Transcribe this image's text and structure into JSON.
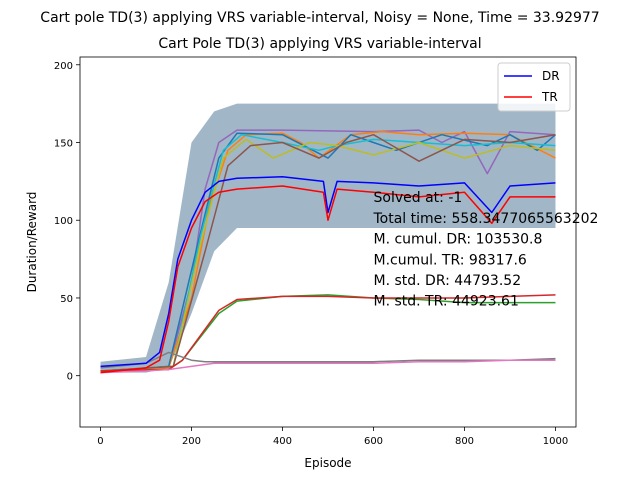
{
  "chart_data": {
    "type": "line",
    "suptitle": "Cart pole TD(3) applying VRS variable-interval, Noisy = None, Time = 33.92977",
    "title": "Cart Pole TD(3) applying VRS variable-interval",
    "xlabel": "Episode",
    "ylabel": "Duration/Reward",
    "xlim": [
      -45,
      1045
    ],
    "ylim": [
      -33,
      205
    ],
    "xticks": [
      0,
      200,
      400,
      600,
      800,
      1000
    ],
    "yticks": [
      0,
      50,
      100,
      150,
      200
    ],
    "legend": {
      "placement": "top-right",
      "entries": [
        {
          "label": "DR",
          "color": "#0000ff"
        },
        {
          "label": "TR",
          "color": "#ff0000"
        }
      ]
    },
    "annotation": {
      "x": 600,
      "y": 45,
      "lines": [
        "Solved at: -1",
        "Total time: 558.3477065563202",
        "M. cumul. DR: 103530.8",
        "M.cumul. TR: 98317.6",
        "M. std. DR: 44793.52",
        "M. std. TR: 44923.61"
      ]
    },
    "band": {
      "color": "#6f91aa",
      "x": [
        0,
        100,
        150,
        200,
        250,
        300,
        1000
      ],
      "lower": [
        2,
        2,
        5,
        40,
        80,
        95,
        95
      ],
      "upper": [
        9,
        12,
        60,
        150,
        170,
        175,
        175
      ]
    },
    "series": [
      {
        "name": "DR",
        "color": "#0000ff",
        "width": 1.5,
        "x": [
          0,
          100,
          130,
          150,
          170,
          200,
          230,
          260,
          300,
          400,
          490,
          500,
          520,
          600,
          700,
          800,
          860,
          900,
          1000
        ],
        "y": [
          6,
          8,
          15,
          40,
          75,
          100,
          118,
          125,
          127,
          128,
          125,
          105,
          125,
          124,
          122,
          124,
          105,
          122,
          124
        ]
      },
      {
        "name": "TR",
        "color": "#ff0000",
        "width": 1.5,
        "x": [
          0,
          100,
          130,
          150,
          170,
          200,
          230,
          260,
          300,
          400,
          490,
          500,
          520,
          600,
          700,
          800,
          860,
          900,
          1000
        ],
        "y": [
          2,
          5,
          10,
          35,
          70,
          95,
          112,
          118,
          120,
          122,
          118,
          100,
          120,
          118,
          115,
          118,
          98,
          115,
          115
        ]
      },
      {
        "color": "#9467bd",
        "width": 1.5,
        "x": [
          0,
          150,
          200,
          230,
          260,
          300,
          400,
          600,
          700,
          750,
          800,
          850,
          900,
          1000
        ],
        "y": [
          3,
          5,
          60,
          120,
          150,
          158,
          158,
          157,
          158,
          150,
          157,
          130,
          157,
          155
        ]
      },
      {
        "color": "#ff7f0e",
        "width": 1.5,
        "x": [
          0,
          150,
          200,
          240,
          280,
          320,
          400,
          440,
          480,
          550,
          620,
          700,
          800,
          900,
          1000
        ],
        "y": [
          3,
          5,
          50,
          110,
          145,
          155,
          156,
          150,
          140,
          155,
          157,
          155,
          156,
          155,
          140
        ]
      },
      {
        "color": "#1f77b4",
        "width": 1.5,
        "x": [
          0,
          150,
          210,
          260,
          300,
          400,
          500,
          550,
          600,
          650,
          750,
          850,
          900,
          960,
          1000
        ],
        "y": [
          3,
          6,
          80,
          140,
          156,
          155,
          140,
          155,
          150,
          145,
          155,
          148,
          155,
          145,
          155
        ]
      },
      {
        "color": "#17becf",
        "width": 1.5,
        "x": [
          0,
          160,
          220,
          270,
          310,
          400,
          480,
          520,
          600,
          700,
          800,
          900,
          1000
        ],
        "y": [
          3,
          6,
          90,
          145,
          155,
          150,
          145,
          148,
          152,
          150,
          148,
          150,
          148
        ]
      },
      {
        "color": "#bcbd22",
        "width": 1.5,
        "x": [
          0,
          160,
          220,
          270,
          320,
          380,
          460,
          520,
          600,
          700,
          800,
          900,
          1000
        ],
        "y": [
          3,
          6,
          85,
          140,
          152,
          140,
          150,
          148,
          142,
          150,
          140,
          148,
          145
        ]
      },
      {
        "color": "#8c564b",
        "width": 1.5,
        "x": [
          0,
          160,
          230,
          280,
          330,
          400,
          480,
          540,
          600,
          700,
          800,
          900,
          1000
        ],
        "y": [
          3,
          6,
          80,
          135,
          148,
          150,
          140,
          150,
          155,
          138,
          152,
          150,
          155
        ]
      },
      {
        "color": "#2ca02c",
        "width": 1.5,
        "x": [
          0,
          150,
          180,
          220,
          260,
          300,
          400,
          500,
          600,
          700,
          800,
          900,
          1000
        ],
        "y": [
          3,
          4,
          10,
          25,
          40,
          48,
          51,
          52,
          50,
          49,
          47,
          47,
          47
        ]
      },
      {
        "color": "#d62728",
        "width": 1.5,
        "x": [
          0,
          150,
          180,
          220,
          260,
          300,
          400,
          500,
          600,
          700,
          800,
          900,
          1000
        ],
        "y": [
          3,
          4,
          10,
          26,
          42,
          49,
          51,
          51,
          50,
          50,
          50,
          51,
          52
        ]
      },
      {
        "color": "#7f7f7f",
        "width": 1.5,
        "x": [
          0,
          100,
          150,
          200,
          230,
          300,
          400,
          500,
          600,
          700,
          800,
          900,
          1000
        ],
        "y": [
          5,
          8,
          15,
          10,
          9,
          9,
          9,
          9,
          9,
          10,
          10,
          10,
          11
        ]
      },
      {
        "color": "#e377c2",
        "width": 1.5,
        "x": [
          0,
          100,
          150,
          200,
          250,
          300,
          400,
          500,
          600,
          700,
          800,
          900,
          1000
        ],
        "y": [
          2,
          3,
          4,
          6,
          8,
          8,
          8,
          8,
          8,
          9,
          9,
          10,
          10
        ]
      }
    ]
  }
}
